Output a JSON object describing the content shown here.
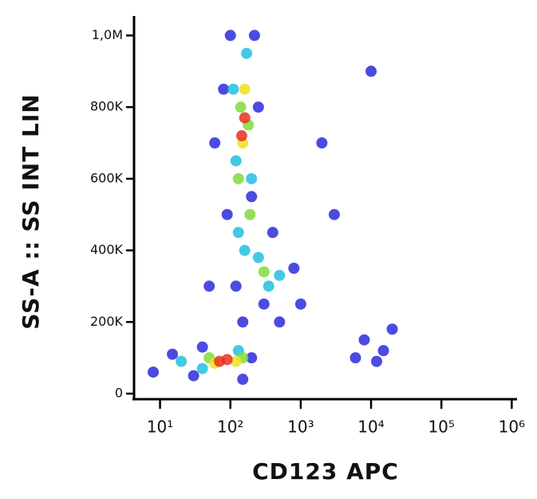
{
  "chart_data": {
    "type": "scatter",
    "xlabel": "CD123 APC",
    "ylabel": "SS-A :: SS INT LIN",
    "xscale": "log",
    "xlim": [
      4.5,
      1100000
    ],
    "ylim": [
      0,
      1050000
    ],
    "xticks": [
      {
        "value": 10,
        "label": "10¹"
      },
      {
        "value": 100,
        "label": "10²"
      },
      {
        "value": 1000,
        "label": "10³"
      },
      {
        "value": 10000,
        "label": "10⁴"
      },
      {
        "value": 100000,
        "label": "10⁵"
      },
      {
        "value": 1000000,
        "label": "10⁶"
      }
    ],
    "yticks": [
      0,
      {
        "value": 200000,
        "label": "200K"
      },
      {
        "value": 400000,
        "label": "400K"
      },
      {
        "value": 600000,
        "label": "600K"
      },
      {
        "value": 800000,
        "label": "800K"
      },
      {
        "value": 1000000,
        "label": "1,0M"
      }
    ],
    "series": [
      {
        "color": "#2b2bdc",
        "x": [
          8,
          15,
          30,
          40,
          150,
          200,
          120,
          90,
          80,
          100,
          220,
          250,
          200,
          300,
          500,
          800,
          1000,
          400,
          2000,
          10000,
          8000,
          15000,
          12000,
          6000,
          20000,
          50,
          150,
          60,
          3000
        ],
        "values": [
          60000,
          110000,
          50000,
          130000,
          40000,
          100000,
          300000,
          500000,
          850000,
          1000000,
          1000000,
          800000,
          550000,
          250000,
          200000,
          350000,
          250000,
          450000,
          700000,
          900000,
          150000,
          120000,
          90000,
          100000,
          180000,
          300000,
          200000,
          700000,
          500000
        ]
      },
      {
        "color": "#22c0e0",
        "x": [
          20,
          40,
          130,
          130,
          170,
          110,
          200,
          250,
          350,
          500,
          120,
          160
        ],
        "values": [
          90000,
          70000,
          120000,
          450000,
          950000,
          850000,
          600000,
          380000,
          300000,
          330000,
          650000,
          400000
        ]
      },
      {
        "color": "#7fdc3c",
        "x": [
          50,
          150,
          140,
          180,
          130,
          300,
          190
        ],
        "values": [
          100000,
          100000,
          800000,
          750000,
          600000,
          340000,
          500000
        ]
      },
      {
        "color": "#f0e020",
        "x": [
          60,
          120,
          150,
          160
        ],
        "values": [
          85000,
          90000,
          700000,
          850000
        ]
      },
      {
        "color": "#e83020",
        "x": [
          70,
          90,
          145,
          160
        ],
        "values": [
          90000,
          95000,
          720000,
          770000
        ]
      }
    ]
  }
}
